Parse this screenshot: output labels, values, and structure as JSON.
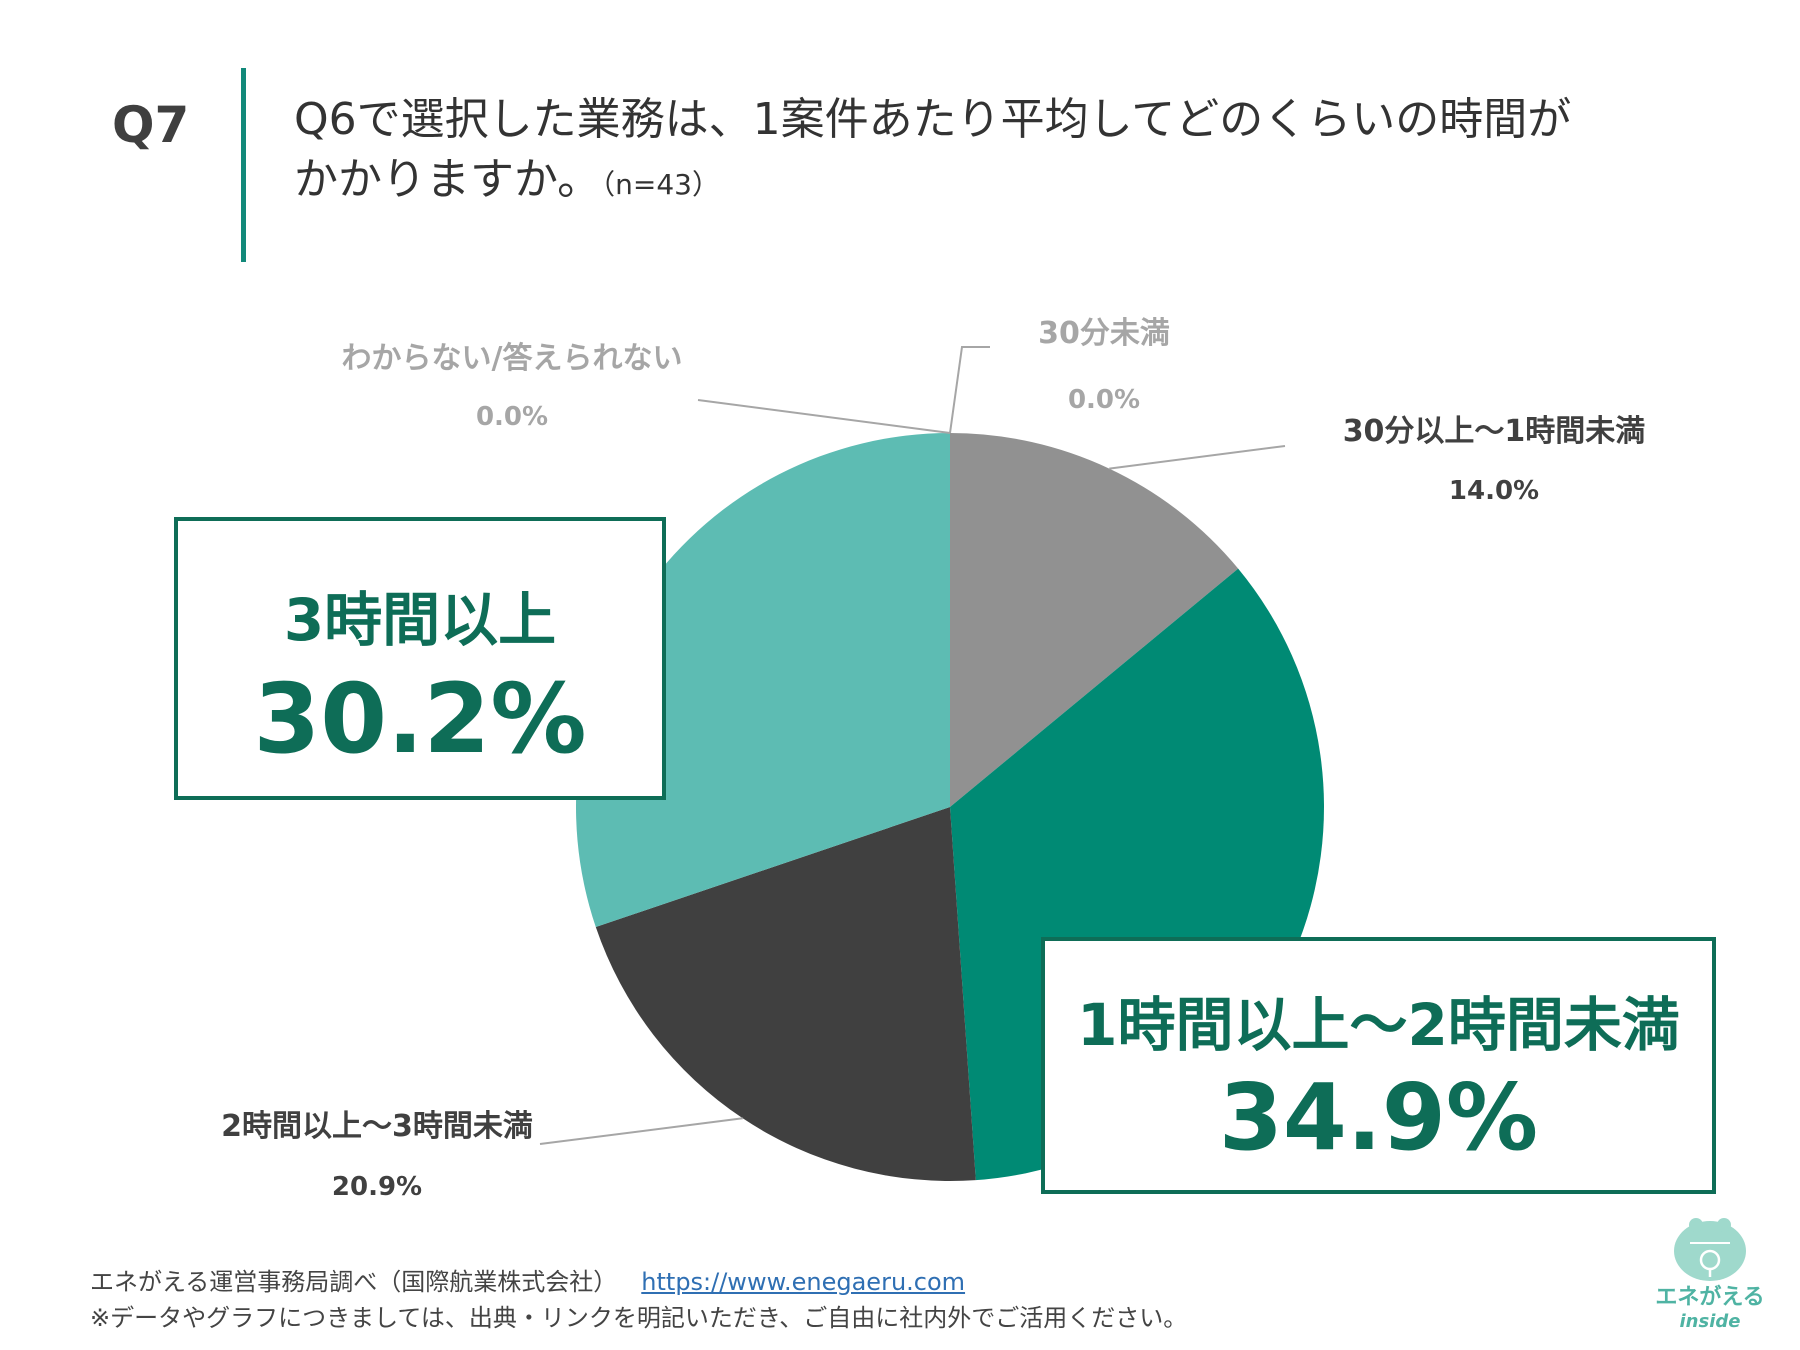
{
  "question": {
    "number": "Q7",
    "line1": "Q6で選択した業務は、1案件あたり平均してどのくらいの時間が",
    "line2": "かかりますか。",
    "sample": "（n=43）"
  },
  "colors": {
    "accent": "#12897a",
    "callout_text": "#0e6d57",
    "slice_30_60": "#919191",
    "slice_1_2h": "#008a74",
    "slice_2_3h": "#404040",
    "slice_3h": "#5dbcb3",
    "label_gray": "#a6a6a6",
    "label_dark": "#404040"
  },
  "chart_data": {
    "type": "pie",
    "title": "Q6で選択した業務は、1案件あたり平均してどのくらいの時間がかかりますか。（n=43）",
    "start": "12 o'clock, clockwise",
    "slices": [
      {
        "label": "30分未満",
        "value": 0.0,
        "display": "0.0%"
      },
      {
        "label": "30分以上～1時間未満",
        "value": 14.0,
        "display": "14.0%"
      },
      {
        "label": "1時間以上～2時間未満",
        "value": 34.9,
        "display": "34.9%"
      },
      {
        "label": "2時間以上～3時間未満",
        "value": 20.9,
        "display": "20.9%"
      },
      {
        "label": "3時間以上",
        "value": 30.2,
        "display": "30.2%"
      },
      {
        "label": "わからない/答えられない",
        "value": 0.0,
        "display": "0.0%"
      }
    ]
  },
  "footer": {
    "source": "エネがえる運営事務局調べ（国際航業株式会社）",
    "url": "https://www.enegaeru.com",
    "note": "※データやグラフにつきましては、出典・リンクを明記いただき、ご自由に社内外でご活用ください。"
  },
  "logo": {
    "title": "エネがえる",
    "subtitle": "inside"
  }
}
